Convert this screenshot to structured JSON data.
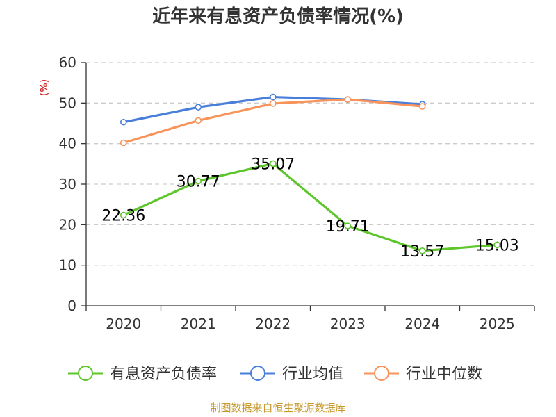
{
  "chart_data": {
    "type": "line",
    "title": "近年来有息资产负债率情况(%)",
    "ylabel": "(%)",
    "x": [
      "2020",
      "2021",
      "2022",
      "2023",
      "2024",
      "2025"
    ],
    "ylim": [
      0,
      60
    ],
    "yticks": [
      0,
      10,
      20,
      30,
      40,
      50,
      60
    ],
    "grid": true,
    "legend_position": "bottom",
    "series": [
      {
        "name": "有息资产负债率",
        "color": "#5cc62b",
        "values": [
          22.36,
          30.77,
          35.07,
          19.71,
          13.57,
          15.03
        ],
        "labels": [
          "22.36",
          "30.77",
          "35.07",
          "19.71",
          "13.57",
          "15.03"
        ]
      },
      {
        "name": "行业均值",
        "color": "#4a7fd9",
        "values": [
          45.3,
          49.0,
          51.5,
          50.9,
          49.7,
          null
        ]
      },
      {
        "name": "行业中位数",
        "color": "#f8935a",
        "values": [
          40.2,
          45.7,
          49.9,
          50.9,
          49.2,
          null
        ]
      }
    ]
  },
  "colors": {
    "ylabel": "#cc0000",
    "source": "#c89a2e",
    "grid": "#cccccc",
    "axis": "#333333"
  },
  "source": "制图数据来自恒生聚源数据库"
}
